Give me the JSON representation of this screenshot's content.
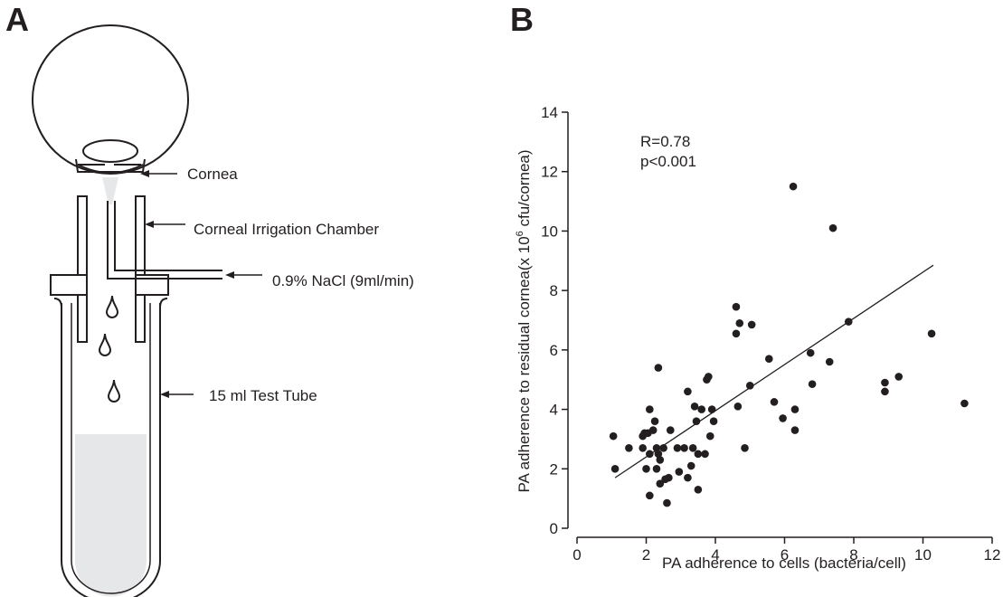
{
  "panels": {
    "a_label": "A",
    "b_label": "B"
  },
  "diagram": {
    "labels": {
      "cornea": "Cornea",
      "chamber": "Corneal Irrigation Chamber",
      "saline": "0.9% NaCl (9ml/min)",
      "tube": "15 ml Test Tube"
    }
  },
  "chart_data": {
    "type": "scatter",
    "xlabel": "PA adherence to cells (bacteria/cell)",
    "ylabel_prefix": "PA adherence to residual cornea(x 10",
    "ylabel_sup": "6",
    "ylabel_suffix": " cfu/cornea)",
    "xlim": [
      0,
      12
    ],
    "ylim": [
      0,
      14
    ],
    "xticks": [
      0,
      2,
      4,
      6,
      8,
      10,
      12
    ],
    "yticks": [
      0,
      2,
      4,
      6,
      8,
      10,
      12,
      14
    ],
    "xtick_labels": [
      "0",
      "2",
      "4",
      "6",
      "8",
      "10",
      "12"
    ],
    "ytick_labels": [
      "0",
      "2",
      "4",
      "6",
      "8",
      "10",
      "12",
      "14"
    ],
    "annotations": [
      "R=0.78",
      "p<0.001"
    ],
    "regression_line": {
      "x": [
        1.1,
        10.3
      ],
      "y": [
        1.7,
        8.85
      ]
    },
    "points": [
      [
        1.05,
        3.1
      ],
      [
        1.1,
        2.0
      ],
      [
        1.5,
        2.7
      ],
      [
        1.9,
        3.1
      ],
      [
        1.95,
        3.2
      ],
      [
        1.9,
        2.7
      ],
      [
        2.0,
        2.0
      ],
      [
        2.05,
        3.2
      ],
      [
        2.1,
        4.0
      ],
      [
        2.1,
        2.5
      ],
      [
        2.1,
        1.1
      ],
      [
        2.2,
        3.3
      ],
      [
        2.25,
        3.6
      ],
      [
        2.3,
        2.7
      ],
      [
        2.3,
        2.0
      ],
      [
        2.35,
        5.4
      ],
      [
        2.35,
        2.5
      ],
      [
        2.4,
        2.3
      ],
      [
        2.4,
        1.5
      ],
      [
        2.5,
        2.7
      ],
      [
        2.55,
        1.65
      ],
      [
        2.6,
        0.85
      ],
      [
        2.65,
        1.7
      ],
      [
        2.7,
        3.3
      ],
      [
        2.9,
        2.7
      ],
      [
        2.95,
        1.9
      ],
      [
        3.1,
        2.7
      ],
      [
        3.2,
        1.7
      ],
      [
        3.2,
        4.6
      ],
      [
        3.3,
        2.1
      ],
      [
        3.35,
        2.7
      ],
      [
        3.4,
        4.1
      ],
      [
        3.45,
        3.6
      ],
      [
        3.5,
        2.5
      ],
      [
        3.5,
        1.3
      ],
      [
        3.6,
        4.0
      ],
      [
        3.7,
        2.5
      ],
      [
        3.75,
        5.0
      ],
      [
        3.8,
        5.1
      ],
      [
        3.85,
        3.1
      ],
      [
        3.9,
        4.0
      ],
      [
        3.95,
        3.6
      ],
      [
        4.85,
        2.7
      ],
      [
        5.0,
        4.8
      ],
      [
        5.05,
        6.85
      ],
      [
        4.6,
        6.55
      ],
      [
        4.6,
        7.45
      ],
      [
        4.7,
        6.9
      ],
      [
        4.65,
        4.1
      ],
      [
        5.55,
        5.7
      ],
      [
        5.7,
        4.25
      ],
      [
        5.95,
        3.7
      ],
      [
        6.25,
        11.5
      ],
      [
        6.3,
        4.0
      ],
      [
        6.3,
        3.3
      ],
      [
        6.75,
        5.9
      ],
      [
        6.8,
        4.85
      ],
      [
        7.3,
        5.6
      ],
      [
        7.4,
        10.1
      ],
      [
        7.85,
        6.95
      ],
      [
        8.9,
        4.6
      ],
      [
        8.9,
        4.9
      ],
      [
        9.3,
        5.1
      ],
      [
        10.25,
        6.55
      ],
      [
        11.2,
        4.2
      ]
    ]
  }
}
